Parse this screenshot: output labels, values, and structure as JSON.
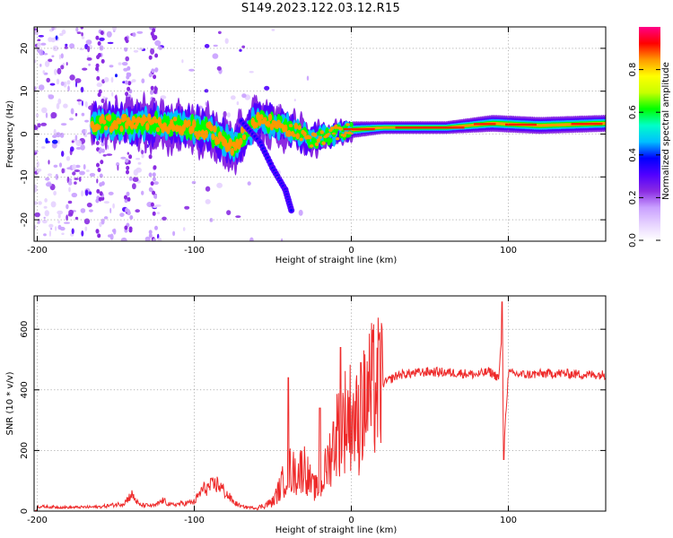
{
  "title": "S149.2023.122.03.12.R15",
  "chart_data": [
    {
      "type": "heatmap",
      "xlabel": "Height of straight line (km)",
      "ylabel": "Frequency (Hz)",
      "xlim": [
        -202,
        162
      ],
      "ylim": [
        -25,
        25
      ],
      "xticks": [
        -200,
        -100,
        0,
        100
      ],
      "yticks": [
        -20,
        -10,
        0,
        10,
        20
      ],
      "colorbar": {
        "label": "Normalized spectral amplitude",
        "range": [
          0,
          1
        ],
        "ticks": [
          "0.0",
          "0.2",
          "0.4",
          "0.6",
          "0.8"
        ],
        "colors": [
          "#ffffff",
          "#e6d2ff",
          "#c9a0ff",
          "#8a2be2",
          "#5000ff",
          "#0000ff",
          "#00bfff",
          "#00ffc8",
          "#00ff00",
          "#c8ff00",
          "#ffff00",
          "#ff9900",
          "#ff0000",
          "#ff0088"
        ]
      },
      "ridge": [
        {
          "x": -165,
          "y": 2.5,
          "w": 10
        },
        {
          "x": -150,
          "y": 2.5,
          "w": 9
        },
        {
          "x": -130,
          "y": 2.5,
          "w": 10
        },
        {
          "x": -110,
          "y": 2.0,
          "w": 10
        },
        {
          "x": -90,
          "y": 0.5,
          "w": 10
        },
        {
          "x": -75,
          "y": -3.0,
          "w": 10
        },
        {
          "x": -60,
          "y": 3.5,
          "w": 9
        },
        {
          "x": -45,
          "y": 2.0,
          "w": 8
        },
        {
          "x": -35,
          "y": 0.5,
          "w": 7
        },
        {
          "x": -25,
          "y": -1.5,
          "w": 6
        },
        {
          "x": -12,
          "y": 0.0,
          "w": 5
        },
        {
          "x": 0,
          "y": 1.0,
          "w": 4
        },
        {
          "x": 20,
          "y": 1.5,
          "w": 3
        },
        {
          "x": 60,
          "y": 1.5,
          "w": 3
        },
        {
          "x": 90,
          "y": 2.5,
          "w": 4
        },
        {
          "x": 120,
          "y": 2.0,
          "w": 4
        },
        {
          "x": 162,
          "y": 2.5,
          "w": 4
        }
      ],
      "branch": [
        {
          "x": -70,
          "y": 3
        },
        {
          "x": -58,
          "y": -2
        },
        {
          "x": -50,
          "y": -8
        },
        {
          "x": -42,
          "y": -13
        },
        {
          "x": -38,
          "y": -18
        }
      ]
    },
    {
      "type": "line",
      "xlabel": "Height of straight line (km)",
      "ylabel": "SNR (10 * v/v)",
      "xlim": [
        -202,
        162
      ],
      "ylim": [
        0,
        710
      ],
      "xticks": [
        -200,
        -100,
        0,
        100
      ],
      "yticks": [
        0,
        200,
        400,
        600
      ],
      "color": "#ee2a2a",
      "series": [
        {
          "x": [
            -200,
            -180,
            -160,
            -145,
            -140,
            -135,
            -125,
            -120,
            -115,
            -100,
            -95,
            -85,
            -80,
            -75,
            -70,
            -60,
            -50,
            -45,
            -40,
            -35,
            -30,
            -25,
            -20,
            -15,
            -10,
            -5,
            0,
            5,
            10,
            20,
            30,
            50,
            70,
            80,
            88,
            94,
            96,
            97,
            100,
            110,
            130,
            150,
            162
          ],
          "y": [
            15,
            12,
            14,
            25,
            55,
            20,
            18,
            35,
            20,
            30,
            70,
            90,
            60,
            30,
            15,
            10,
            30,
            80,
            140,
            120,
            150,
            80,
            70,
            160,
            250,
            300,
            320,
            280,
            380,
            420,
            450,
            460,
            455,
            450,
            460,
            440,
            600,
            200,
            455,
            450,
            455,
            450,
            450
          ]
        }
      ],
      "spikes": [
        {
          "x": -40,
          "y": 440
        },
        {
          "x": -20,
          "y": 340
        },
        {
          "x": -7,
          "y": 540
        },
        {
          "x": 6,
          "y": 490
        },
        {
          "x": 96,
          "y": 690
        },
        {
          "x": 97,
          "y": 170
        }
      ]
    }
  ]
}
